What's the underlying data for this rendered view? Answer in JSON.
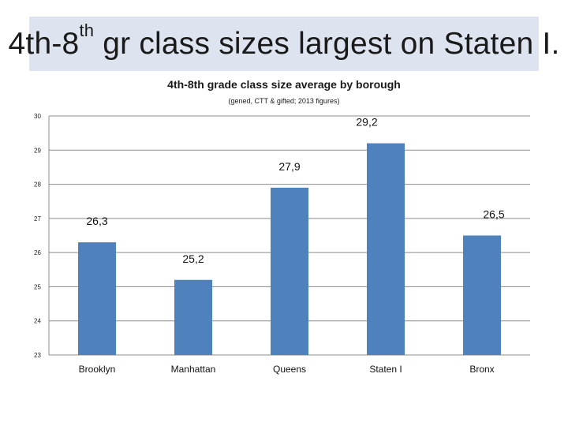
{
  "slide": {
    "title_main": "4th-8",
    "title_sup": "th",
    "title_rest": " gr class sizes largest on Staten I."
  },
  "colors": {
    "title_band": "#dde4ef",
    "bar": "#4f81bd",
    "gridline": "#8c8c8c"
  },
  "chart_data": {
    "type": "bar",
    "title": "4th-8th grade class size average by borough",
    "subtitle": "(gened, CTT & gifted; 2013 figures)",
    "categories": [
      "Brooklyn",
      "Manhattan",
      "Queens",
      "Staten I",
      "Bronx"
    ],
    "values": [
      26.3,
      25.2,
      27.9,
      29.2,
      26.5
    ],
    "data_labels": [
      "26,3",
      "25,2",
      "27,9",
      "29,2",
      "26,5"
    ],
    "ylim": [
      23,
      30
    ],
    "yticks": [
      "30",
      "29",
      "28",
      "27",
      "26",
      "25",
      "24",
      "23"
    ],
    "grid": true,
    "legend": "none"
  }
}
